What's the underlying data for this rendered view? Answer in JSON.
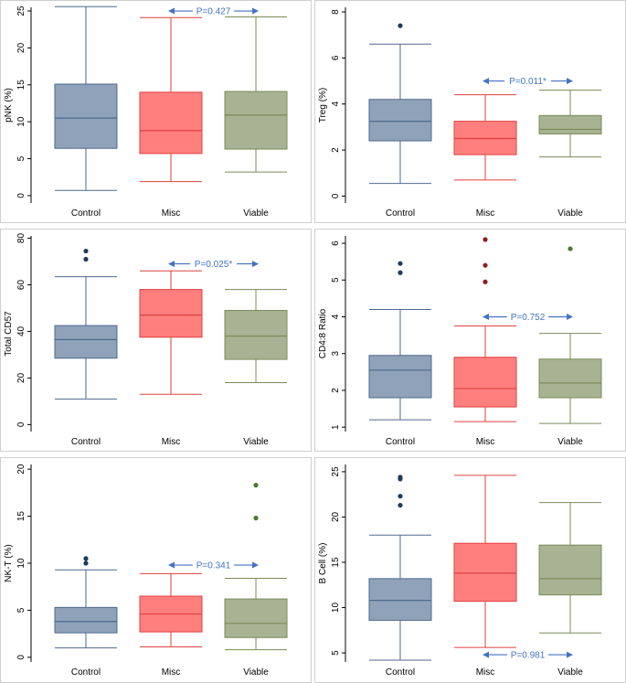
{
  "chart_data": [
    {
      "type": "box",
      "ylabel": "pNK (%)",
      "ylim": [
        -1,
        25.5
      ],
      "yticks": [
        0,
        5,
        10,
        15,
        20,
        25
      ],
      "categories": [
        "Control",
        "Misc",
        "Viable"
      ],
      "boxes": [
        {
          "name": "Control",
          "min": 0.7,
          "q1": 6.4,
          "median": 10.5,
          "q3": 15.1,
          "max": 25.6,
          "outliers": []
        },
        {
          "name": "Misc",
          "min": 1.9,
          "q1": 5.7,
          "median": 8.8,
          "q3": 14.0,
          "max": 24.1,
          "outliers": []
        },
        {
          "name": "Viable",
          "min": 3.2,
          "q1": 6.3,
          "median": 10.9,
          "q3": 14.1,
          "max": 24.2,
          "outliers": []
        }
      ],
      "annotation": {
        "text": "P=0.427",
        "from": "Misc",
        "to": "Viable",
        "y": 25.0
      }
    },
    {
      "type": "box",
      "ylabel": "Treg (%)",
      "ylim": [
        -0.3,
        8.2
      ],
      "yticks": [
        0,
        2,
        4,
        6,
        8
      ],
      "categories": [
        "Control",
        "Misc",
        "Viable"
      ],
      "boxes": [
        {
          "name": "Control",
          "min": 0.55,
          "q1": 2.4,
          "median": 3.25,
          "q3": 4.2,
          "max": 6.6,
          "outliers": [
            7.4
          ]
        },
        {
          "name": "Misc",
          "min": 0.7,
          "q1": 1.8,
          "median": 2.5,
          "q3": 3.25,
          "max": 4.4,
          "outliers": []
        },
        {
          "name": "Viable",
          "min": 1.7,
          "q1": 2.7,
          "median": 2.9,
          "q3": 3.5,
          "max": 4.6,
          "outliers": []
        }
      ],
      "annotation": {
        "text": "P=0.011*",
        "from": "Misc",
        "to": "Viable",
        "y": 5.0
      }
    },
    {
      "type": "box",
      "ylabel": "Total CD57",
      "ylim": [
        -3,
        81
      ],
      "yticks": [
        0,
        20,
        40,
        60,
        80
      ],
      "categories": [
        "Control",
        "Misc",
        "Viable"
      ],
      "boxes": [
        {
          "name": "Control",
          "min": 11,
          "q1": 28.5,
          "median": 36.5,
          "q3": 42.5,
          "max": 63.5,
          "outliers": [
            71,
            74.5
          ]
        },
        {
          "name": "Misc",
          "min": 13,
          "q1": 37.5,
          "median": 47,
          "q3": 58,
          "max": 66,
          "outliers": []
        },
        {
          "name": "Viable",
          "min": 18,
          "q1": 28,
          "median": 38,
          "q3": 49,
          "max": 58,
          "outliers": []
        }
      ],
      "annotation": {
        "text": "P=0.025*",
        "from": "Misc",
        "to": "Viable",
        "y": 69
      }
    },
    {
      "type": "box",
      "ylabel": "CD4:8 Ratio",
      "ylim": [
        0.88,
        6.2
      ],
      "yticks": [
        1,
        2,
        3,
        4,
        5,
        6
      ],
      "categories": [
        "Control",
        "Misc",
        "Viable"
      ],
      "boxes": [
        {
          "name": "Control",
          "min": 1.2,
          "q1": 1.8,
          "median": 2.55,
          "q3": 2.95,
          "max": 4.2,
          "outliers": [
            5.2,
            5.45
          ]
        },
        {
          "name": "Misc",
          "min": 1.15,
          "q1": 1.55,
          "median": 2.05,
          "q3": 2.9,
          "max": 3.75,
          "outliers": [
            4.95,
            5.4,
            6.1
          ]
        },
        {
          "name": "Viable",
          "min": 1.1,
          "q1": 1.8,
          "median": 2.2,
          "q3": 2.85,
          "max": 3.55,
          "outliers": [
            5.85
          ]
        }
      ],
      "annotation": {
        "text": "P=0.752",
        "from": "Misc",
        "to": "Viable",
        "y": 4.0
      }
    },
    {
      "type": "box",
      "ylabel": "NK-T (%)",
      "ylim": [
        -0.5,
        20.5
      ],
      "yticks": [
        0,
        5,
        10,
        15,
        20
      ],
      "categories": [
        "Control",
        "Misc",
        "Viable"
      ],
      "boxes": [
        {
          "name": "Control",
          "min": 1.0,
          "q1": 2.6,
          "median": 3.8,
          "q3": 5.3,
          "max": 9.3,
          "outliers": [
            10.0,
            10.5
          ]
        },
        {
          "name": "Misc",
          "min": 1.1,
          "q1": 2.7,
          "median": 4.6,
          "q3": 6.5,
          "max": 8.9,
          "outliers": []
        },
        {
          "name": "Viable",
          "min": 0.8,
          "q1": 2.1,
          "median": 3.6,
          "q3": 6.2,
          "max": 8.4,
          "outliers": [
            14.8,
            18.3
          ]
        }
      ],
      "annotation": {
        "text": "P=0.341",
        "from": "Misc",
        "to": "Viable",
        "y": 9.8
      }
    },
    {
      "type": "box",
      "ylabel": "B Cell (%)",
      "ylim": [
        4,
        25.8
      ],
      "yticks": [
        5,
        10,
        15,
        20,
        25
      ],
      "categories": [
        "Control",
        "Misc",
        "Viable"
      ],
      "boxes": [
        {
          "name": "Control",
          "min": 4.2,
          "q1": 8.6,
          "median": 10.8,
          "q3": 13.2,
          "max": 18,
          "outliers": [
            21.3,
            22.3,
            24.2,
            24.4
          ]
        },
        {
          "name": "Misc",
          "min": 5.6,
          "q1": 10.7,
          "median": 13.8,
          "q3": 17.1,
          "max": 24.6,
          "outliers": []
        },
        {
          "name": "Viable",
          "min": 7.2,
          "q1": 11.4,
          "median": 13.2,
          "q3": 16.9,
          "max": 21.6,
          "outliers": []
        }
      ],
      "annotation": {
        "text": "P=0.981",
        "from": "Misc",
        "to": "Viable",
        "y": 4.8
      }
    }
  ],
  "colors": {
    "Control": {
      "fill": "#8fa2b9",
      "stroke": "#4e6a8e",
      "outlier": "#1f3a5f"
    },
    "Misc": {
      "fill": "#ff7f7f",
      "stroke": "#e04040",
      "outlier": "#8b2020"
    },
    "Viable": {
      "fill": "#a7b392",
      "stroke": "#7a8a5a",
      "outlier": "#4a7a2a"
    },
    "annotation": "#4472c4"
  }
}
